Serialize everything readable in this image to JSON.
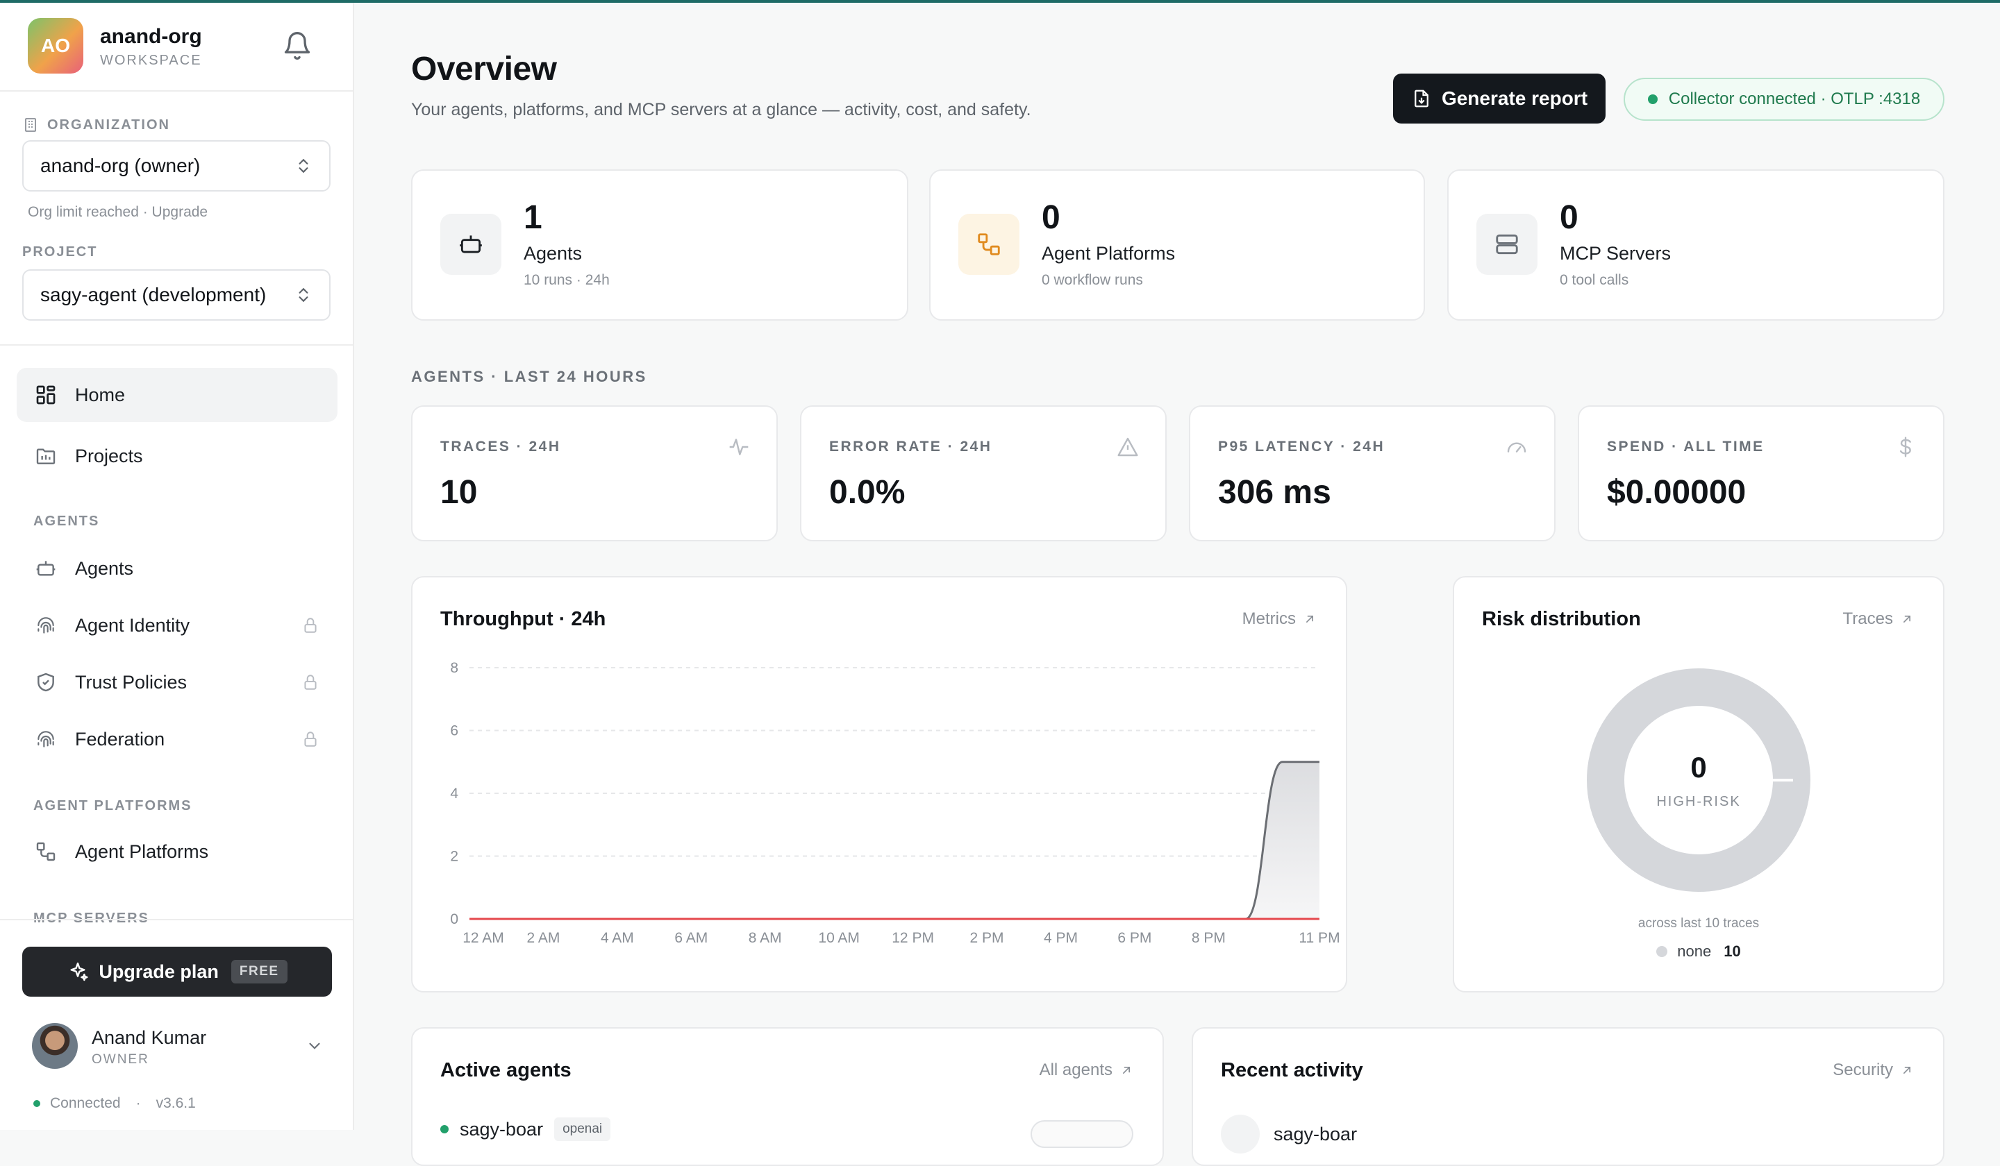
{
  "workspace": {
    "initials": "AO",
    "name": "anand-org",
    "label": "WORKSPACE"
  },
  "org": {
    "section_label": "ORGANIZATION",
    "selected": "anand-org (owner)",
    "note": "Org limit reached · Upgrade"
  },
  "project": {
    "section_label": "PROJECT",
    "selected": "sagy-agent (development)"
  },
  "nav": {
    "home": "Home",
    "projects": "Projects",
    "group_agents": "AGENTS",
    "agents": "Agents",
    "agent_identity": "Agent Identity",
    "trust_policies": "Trust Policies",
    "federation": "Federation",
    "group_platforms": "AGENT PLATFORMS",
    "agent_platforms": "Agent Platforms",
    "group_mcp": "MCP SERVERS"
  },
  "upgrade": {
    "label": "Upgrade plan",
    "badge": "FREE"
  },
  "user": {
    "name": "Anand Kumar",
    "role": "OWNER"
  },
  "status": {
    "connection": "Connected",
    "version": "v3.6.1"
  },
  "page": {
    "title": "Overview",
    "subtitle": "Your agents, platforms, and MCP servers at a glance — activity, cost, and safety.",
    "report_button": "Generate report",
    "collector": "Collector connected · OTLP :4318"
  },
  "summary": [
    {
      "value": "1",
      "label": "Agents",
      "meta": "10 runs · 24h",
      "icon": "robot-icon"
    },
    {
      "value": "0",
      "label": "Agent Platforms",
      "meta": "0 workflow runs",
      "icon": "workflow-icon"
    },
    {
      "value": "0",
      "label": "MCP Servers",
      "meta": "0 tool calls",
      "icon": "server-icon"
    }
  ],
  "section_agents": "AGENTS · LAST 24 HOURS",
  "kpis": [
    {
      "label": "TRACES · 24H",
      "value": "10",
      "icon": "activity-icon"
    },
    {
      "label": "ERROR RATE · 24H",
      "value": "0.0%",
      "icon": "warning-icon"
    },
    {
      "label": "P95 LATENCY · 24H",
      "value": "306 ms",
      "icon": "gauge-icon"
    },
    {
      "label": "SPEND · ALL TIME",
      "value": "$0.00000",
      "icon": "dollar-icon"
    }
  ],
  "throughput": {
    "title": "Throughput · 24h",
    "link": "Metrics"
  },
  "risk": {
    "title": "Risk distribution",
    "link": "Traces",
    "center_value": "0",
    "center_label": "HIGH-RISK",
    "note": "across last 10 traces",
    "legend_label": "none",
    "legend_count": "10"
  },
  "active_agents": {
    "title": "Active agents",
    "link": "All agents",
    "first_name": "sagy-boar",
    "first_tag": "openai"
  },
  "recent": {
    "title": "Recent activity",
    "link": "Security",
    "first_name": "sagy-boar"
  },
  "colors": {
    "accent": "#1e6b66",
    "success": "#22a06b",
    "error_line": "#e5484d",
    "series": "#6b6e73"
  },
  "chart_data": {
    "type": "area",
    "title": "Throughput · 24h",
    "x": [
      "12 AM",
      "1 AM",
      "2 AM",
      "3 AM",
      "4 AM",
      "5 AM",
      "6 AM",
      "7 AM",
      "8 AM",
      "9 AM",
      "10 AM",
      "11 AM",
      "12 PM",
      "1 PM",
      "2 PM",
      "3 PM",
      "4 PM",
      "5 PM",
      "6 PM",
      "7 PM",
      "8 PM",
      "9 PM",
      "10 PM",
      "11 PM"
    ],
    "xticks": [
      "12 AM",
      "2 AM",
      "4 AM",
      "6 AM",
      "8 AM",
      "10 AM",
      "12 PM",
      "2 PM",
      "4 PM",
      "6 PM",
      "8 PM",
      "11 PM"
    ],
    "yticks": [
      0,
      2,
      4,
      6,
      8
    ],
    "ylim": [
      0,
      8
    ],
    "grid": true,
    "series": [
      {
        "values": [
          0,
          0,
          0,
          0,
          0,
          0,
          0,
          0,
          0,
          0,
          0,
          0,
          0,
          0,
          0,
          0,
          0,
          0,
          0,
          0,
          0,
          0,
          5,
          5
        ],
        "color": "#6b6e73"
      },
      {
        "values": [
          0,
          0,
          0,
          0,
          0,
          0,
          0,
          0,
          0,
          0,
          0,
          0,
          0,
          0,
          0,
          0,
          0,
          0,
          0,
          0,
          0,
          0,
          0,
          0
        ],
        "color": "#e5484d"
      }
    ]
  }
}
